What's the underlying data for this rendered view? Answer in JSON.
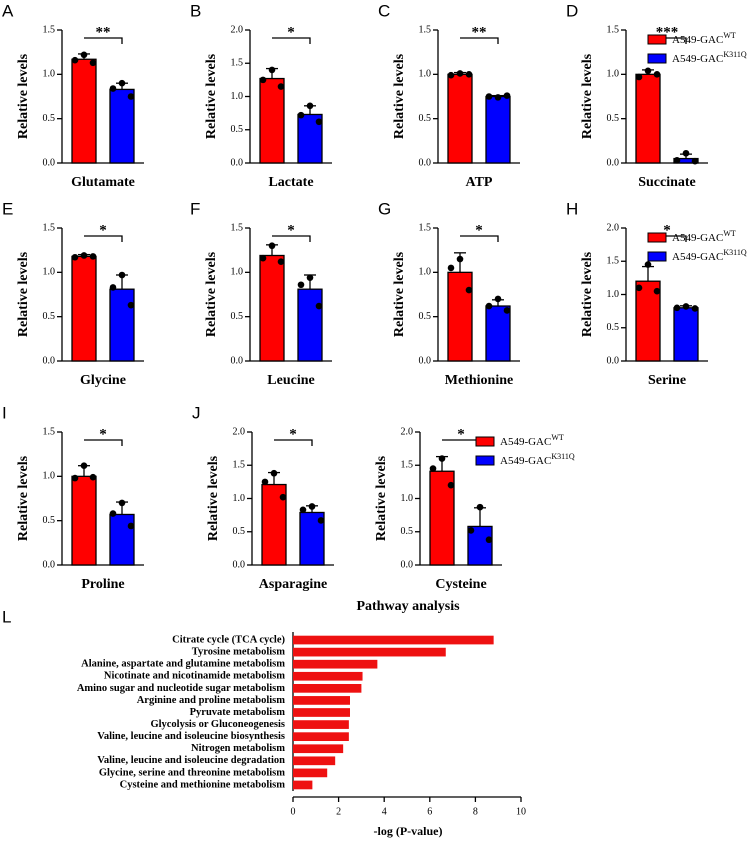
{
  "chart_data": [
    {
      "type": "bar",
      "panel": "A",
      "ylabel": "Relative levels",
      "xlabel": "Glutamate",
      "categories": [
        null
      ],
      "significance": "**",
      "ylim": [
        0,
        1.5
      ],
      "yticks": [
        {
          "value": 0,
          "label": "0.0"
        },
        {
          "value": 0.5,
          "label": "0.5"
        },
        {
          "value": 1,
          "label": "1.0"
        },
        {
          "value": 1.5,
          "label": "1.5"
        }
      ],
      "series": [
        {
          "name": "A549-GAC",
          "name_sup": "WT",
          "color": "#ff0000",
          "values": [
            1.17
          ],
          "errors": [
            0.06
          ],
          "points": [
            1.22,
            1.16,
            1.13
          ]
        },
        {
          "name": "A549-GAC",
          "name_sup": "K311Q",
          "color": "#0000ff",
          "values": [
            0.83
          ],
          "errors": [
            0.07
          ],
          "points": [
            0.9,
            0.84,
            0.75
          ]
        }
      ]
    },
    {
      "type": "bar",
      "panel": "B",
      "ylabel": "Relative levels",
      "xlabel": "Lactate",
      "categories": [
        null
      ],
      "significance": "*",
      "ylim": [
        0,
        2
      ],
      "yticks": [
        {
          "value": 0,
          "label": "0.0"
        },
        {
          "value": 0.5,
          "label": "0.5"
        },
        {
          "value": 1,
          "label": "1.0"
        },
        {
          "value": 1.5,
          "label": "1.5"
        },
        {
          "value": 2,
          "label": "2.0"
        }
      ],
      "series": [
        {
          "name": "A549-GAC",
          "name_sup": "WT",
          "color": "#ff0000",
          "values": [
            1.27
          ],
          "errors": [
            0.15
          ],
          "points": [
            1.4,
            1.25,
            1.15
          ]
        },
        {
          "name": "A549-GAC",
          "name_sup": "K311Q",
          "color": "#0000ff",
          "values": [
            0.73
          ],
          "errors": [
            0.13
          ],
          "points": [
            0.86,
            0.72,
            0.62
          ]
        }
      ]
    },
    {
      "type": "bar",
      "panel": "C",
      "ylabel": "Relative levels",
      "xlabel": "ATP",
      "categories": [
        null
      ],
      "significance": "**",
      "ylim": [
        0,
        1.5
      ],
      "yticks": [
        {
          "value": 0,
          "label": "0.0"
        },
        {
          "value": 0.5,
          "label": "0.5"
        },
        {
          "value": 1,
          "label": "1.0"
        },
        {
          "value": 1.5,
          "label": "1.5"
        }
      ],
      "series": [
        {
          "name": "A549-GAC",
          "name_sup": "WT",
          "color": "#ff0000",
          "values": [
            1.0
          ],
          "errors": [
            0.02
          ],
          "points": [
            1.01,
            0.99,
            1.0
          ]
        },
        {
          "name": "A549-GAC",
          "name_sup": "K311Q",
          "color": "#0000ff",
          "values": [
            0.75
          ],
          "errors": [
            0.01
          ],
          "points": [
            0.74,
            0.75,
            0.76
          ]
        }
      ]
    },
    {
      "type": "bar",
      "panel": "D",
      "ylabel": "Relative levels",
      "xlabel": "Succinate",
      "categories": [
        null
      ],
      "significance": "***",
      "legend": "right",
      "ylim": [
        0,
        1.5
      ],
      "yticks": [
        {
          "value": 0,
          "label": "0.0"
        },
        {
          "value": 0.5,
          "label": "0.5"
        },
        {
          "value": 1,
          "label": "1.0"
        },
        {
          "value": 1.5,
          "label": "1.5"
        }
      ],
      "series": [
        {
          "name": "A549-GAC",
          "name_sup": "WT",
          "color": "#ff0000",
          "values": [
            1.0
          ],
          "errors": [
            0.05
          ],
          "points": [
            1.04,
            0.97,
            1.0
          ]
        },
        {
          "name": "A549-GAC",
          "name_sup": "K311Q",
          "color": "#0000ff",
          "values": [
            0.05
          ],
          "errors": [
            0.05
          ],
          "points": [
            0.11,
            0.03,
            0.02
          ]
        }
      ]
    },
    {
      "type": "bar",
      "panel": "E",
      "ylabel": "Relative levels",
      "xlabel": "Glycine",
      "categories": [
        null
      ],
      "significance": "*",
      "ylim": [
        0,
        1.5
      ],
      "yticks": [
        {
          "value": 0,
          "label": "0.0"
        },
        {
          "value": 0.5,
          "label": "0.5"
        },
        {
          "value": 1,
          "label": "1.0"
        },
        {
          "value": 1.5,
          "label": "1.5"
        }
      ],
      "series": [
        {
          "name": "A549-GAC",
          "name_sup": "WT",
          "color": "#ff0000",
          "values": [
            1.18
          ],
          "errors": [
            0.02
          ],
          "points": [
            1.19,
            1.17,
            1.18
          ]
        },
        {
          "name": "A549-GAC",
          "name_sup": "K311Q",
          "color": "#0000ff",
          "values": [
            0.81
          ],
          "errors": [
            0.16
          ],
          "points": [
            0.97,
            0.83,
            0.63
          ]
        }
      ]
    },
    {
      "type": "bar",
      "panel": "F",
      "ylabel": "Relative levels",
      "xlabel": "Leucine",
      "categories": [
        null
      ],
      "significance": "*",
      "ylim": [
        0,
        1.5
      ],
      "yticks": [
        {
          "value": 0,
          "label": "0.0"
        },
        {
          "value": 0.5,
          "label": "0.5"
        },
        {
          "value": 1,
          "label": "1.0"
        },
        {
          "value": 1.5,
          "label": "1.5"
        }
      ],
      "series": [
        {
          "name": "A549-GAC",
          "name_sup": "WT",
          "color": "#ff0000",
          "values": [
            1.19
          ],
          "errors": [
            0.12
          ],
          "points": [
            1.3,
            1.16,
            1.12
          ]
        },
        {
          "name": "A549-GAC",
          "name_sup": "K311Q",
          "color": "#0000ff",
          "values": [
            0.81
          ],
          "errors": [
            0.16
          ],
          "points": [
            0.94,
            0.86,
            0.62
          ]
        }
      ]
    },
    {
      "type": "bar",
      "panel": "G",
      "ylabel": "Relative levels",
      "xlabel": "Methionine",
      "categories": [
        null
      ],
      "significance": "*",
      "ylim": [
        0,
        1.5
      ],
      "yticks": [
        {
          "value": 0,
          "label": "0.0"
        },
        {
          "value": 0.5,
          "label": "0.5"
        },
        {
          "value": 1,
          "label": "1.0"
        },
        {
          "value": 1.5,
          "label": "1.5"
        }
      ],
      "series": [
        {
          "name": "A549-GAC",
          "name_sup": "WT",
          "color": "#ff0000",
          "values": [
            1.0
          ],
          "errors": [
            0.22
          ],
          "points": [
            1.15,
            1.05,
            0.8
          ]
        },
        {
          "name": "A549-GAC",
          "name_sup": "K311Q",
          "color": "#0000ff",
          "values": [
            0.62
          ],
          "errors": [
            0.07
          ],
          "points": [
            0.7,
            0.62,
            0.57
          ]
        }
      ]
    },
    {
      "type": "bar",
      "panel": "H",
      "ylabel": "Relative levels",
      "xlabel": "Serine",
      "categories": [
        null
      ],
      "significance": "*",
      "legend": "right",
      "ylim": [
        0,
        2
      ],
      "yticks": [
        {
          "value": 0,
          "label": "0.0"
        },
        {
          "value": 0.5,
          "label": "0.5"
        },
        {
          "value": 1,
          "label": "1.0"
        },
        {
          "value": 1.5,
          "label": "1.5"
        },
        {
          "value": 2,
          "label": "2.0"
        }
      ],
      "series": [
        {
          "name": "A549-GAC",
          "name_sup": "WT",
          "color": "#ff0000",
          "values": [
            1.2
          ],
          "errors": [
            0.22
          ],
          "points": [
            1.45,
            1.1,
            1.05
          ]
        },
        {
          "name": "A549-GAC",
          "name_sup": "K311Q",
          "color": "#0000ff",
          "values": [
            0.8
          ],
          "errors": [
            0.03
          ],
          "points": [
            0.82,
            0.8,
            0.79
          ]
        }
      ]
    },
    {
      "type": "bar",
      "panel": "I",
      "ylabel": "Relative levels",
      "xlabel": "Proline",
      "categories": [
        null
      ],
      "significance": "*",
      "ylim": [
        0,
        1.5
      ],
      "yticks": [
        {
          "value": 0,
          "label": "0.0"
        },
        {
          "value": 0.5,
          "label": "0.5"
        },
        {
          "value": 1,
          "label": "1.0"
        },
        {
          "value": 1.5,
          "label": "1.5"
        }
      ],
      "series": [
        {
          "name": "A549-GAC",
          "name_sup": "WT",
          "color": "#ff0000",
          "values": [
            1.0
          ],
          "errors": [
            0.12
          ],
          "points": [
            1.12,
            0.98,
            0.99
          ]
        },
        {
          "name": "A549-GAC",
          "name_sup": "K311Q",
          "color": "#0000ff",
          "values": [
            0.57
          ],
          "errors": [
            0.14
          ],
          "points": [
            0.7,
            0.58,
            0.44
          ]
        }
      ]
    },
    {
      "type": "bar",
      "panel": "J",
      "ylabel": "Relative levels",
      "xlabel": "Asparagine",
      "categories": [
        null
      ],
      "significance": "*",
      "ylim": [
        0,
        2
      ],
      "yticks": [
        {
          "value": 0,
          "label": "0.0"
        },
        {
          "value": 0.5,
          "label": "0.5"
        },
        {
          "value": 1,
          "label": "1.0"
        },
        {
          "value": 1.5,
          "label": "1.5"
        },
        {
          "value": 2,
          "label": "2.0"
        }
      ],
      "series": [
        {
          "name": "A549-GAC",
          "name_sup": "WT",
          "color": "#ff0000",
          "values": [
            1.21
          ],
          "errors": [
            0.18
          ],
          "points": [
            1.38,
            1.25,
            1.02
          ]
        },
        {
          "name": "A549-GAC",
          "name_sup": "K311Q",
          "color": "#0000ff",
          "values": [
            0.79
          ],
          "errors": [
            0.1
          ],
          "points": [
            0.88,
            0.83,
            0.67
          ]
        }
      ]
    },
    {
      "type": "bar",
      "ylabel": "Relative levels",
      "xlabel": "Cysteine",
      "categories": [
        null
      ],
      "significance": "*",
      "legend": "right",
      "ylim": [
        0,
        2
      ],
      "yticks": [
        {
          "value": 0,
          "label": "0.0"
        },
        {
          "value": 0.5,
          "label": "0.5"
        },
        {
          "value": 1,
          "label": "1.0"
        },
        {
          "value": 1.5,
          "label": "1.5"
        },
        {
          "value": 2,
          "label": "2.0"
        }
      ],
      "series": [
        {
          "name": "A549-GAC",
          "name_sup": "WT",
          "color": "#ff0000",
          "values": [
            1.41
          ],
          "errors": [
            0.22
          ],
          "points": [
            1.6,
            1.45,
            1.2
          ]
        },
        {
          "name": "A549-GAC",
          "name_sup": "K311Q",
          "color": "#0000ff",
          "values": [
            0.58
          ],
          "errors": [
            0.28
          ],
          "points": [
            0.87,
            0.52,
            0.38
          ]
        }
      ]
    },
    {
      "type": "hbar",
      "panel": "L",
      "title": "Pathway analysis",
      "xlabel": "-log (P-value)",
      "color": "#ee1111",
      "xlim": [
        0,
        10
      ],
      "xticks": [
        0,
        2,
        4,
        6,
        8,
        10
      ],
      "categories": [
        "Citrate cycle (TCA cycle)",
        "Tyrosine metabolism",
        "Alanine, aspartate and glutamine metabolism",
        "Nicotinate and nicotinamide metabolism",
        "Amino sugar and nucleotide sugar metabolism",
        "Arginine and proline metabolism",
        "Pyruvate metabolism",
        "Glycolysis or Gluconeogenesis",
        "Valine, leucine and isoleucine biosynthesis",
        "Nitrogen metabolism",
        "Valine, leucine and isoleucine degradation",
        "Glycine, serine and threonine metabolism",
        "Cysteine and methionine metabolism"
      ],
      "values": [
        8.8,
        6.7,
        3.7,
        3.05,
        3.0,
        2.5,
        2.5,
        2.45,
        2.45,
        2.2,
        1.85,
        1.5,
        0.85
      ]
    }
  ]
}
